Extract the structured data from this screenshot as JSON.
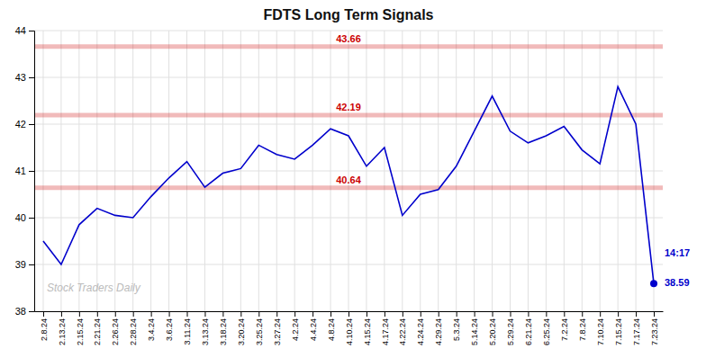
{
  "chart_data": {
    "type": "line",
    "title": "FDTS Long Term Signals",
    "watermark": "Stock Traders Daily",
    "color": "#0000cc",
    "grid": true,
    "categories": [
      "2.8.24",
      "2.13.24",
      "2.15.24",
      "2.21.24",
      "2.26.24",
      "2.28.24",
      "3.4.24",
      "3.6.24",
      "3.11.24",
      "3.13.24",
      "3.18.24",
      "3.20.24",
      "3.25.24",
      "3.27.24",
      "4.2.24",
      "4.4.24",
      "4.8.24",
      "4.10.24",
      "4.15.24",
      "4.17.24",
      "4.22.24",
      "4.24.24",
      "4.29.24",
      "5.3.24",
      "5.14.24",
      "5.20.24",
      "5.29.24",
      "6.21.24",
      "6.25.24",
      "7.2.24",
      "7.8.24",
      "7.10.24",
      "7.15.24",
      "7.17.24",
      "7.23.24"
    ],
    "values": [
      39.5,
      39.0,
      39.85,
      40.2,
      40.05,
      40.0,
      40.45,
      40.85,
      41.2,
      40.65,
      40.95,
      41.05,
      41.55,
      41.35,
      41.25,
      41.55,
      41.9,
      41.75,
      41.1,
      41.5,
      40.05,
      40.5,
      40.6,
      41.1,
      41.85,
      42.6,
      41.85,
      41.6,
      41.75,
      41.95,
      41.45,
      41.15,
      42.8,
      42.0,
      38.59
    ],
    "hlines": [
      {
        "y": 43.66,
        "label": "43.66",
        "color": "#cc0000"
      },
      {
        "y": 42.19,
        "label": "42.19",
        "color": "#cc0000"
      },
      {
        "y": 40.64,
        "label": "40.64",
        "color": "#cc0000"
      }
    ],
    "annotations": [
      {
        "text": "14:17"
      },
      {
        "text": "38.59",
        "value": 38.59
      }
    ],
    "ylim": [
      38.0,
      44.0
    ],
    "yticks": [
      38,
      39,
      40,
      41,
      42,
      43,
      44
    ]
  }
}
